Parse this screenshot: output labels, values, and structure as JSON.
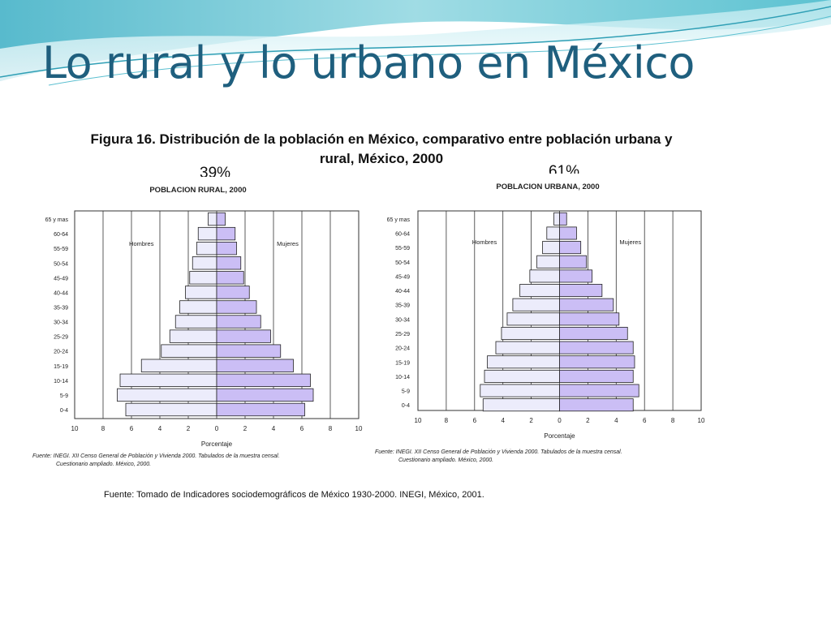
{
  "slide": {
    "title": "Lo rural y lo urbano en México",
    "figure_title": "Figura 16. Distribución de la población en México, comparativo entre población urbana y rural, México, 2000",
    "footnote": "Fuente: Tomado de Indicadores sociodemográficos de México 1930-2000. INEGI, México, 2001.",
    "colors": {
      "title": "#1f5f7e",
      "hombres_fill": "#ececfb",
      "mujeres_fill": "#cbbef5",
      "bar_stroke": "#222222"
    }
  },
  "chart_data": [
    {
      "type": "bar",
      "orientation": "population-pyramid",
      "share_label": "39%",
      "title": "POBLACION RURAL, 2000",
      "xlabel": "Porcentaje",
      "left_label": "Hombres",
      "right_label": "Mujeres",
      "xlim": [
        -10,
        10
      ],
      "x_ticks": [
        "10",
        "8",
        "6",
        "4",
        "2",
        "0",
        "2",
        "4",
        "6",
        "8",
        "10"
      ],
      "categories": [
        "0-4",
        "5-9",
        "10-14",
        "15-19",
        "20-24",
        "25-29",
        "30-34",
        "35-39",
        "40-44",
        "45-49",
        "50-54",
        "55-59",
        "60-64",
        "65 y mas"
      ],
      "series": [
        {
          "name": "Hombres",
          "values": [
            6.4,
            7.0,
            6.8,
            5.3,
            3.9,
            3.3,
            2.9,
            2.6,
            2.2,
            1.9,
            1.7,
            1.4,
            1.3,
            0.6
          ]
        },
        {
          "name": "Mujeres",
          "values": [
            6.2,
            6.8,
            6.6,
            5.4,
            4.5,
            3.8,
            3.1,
            2.8,
            2.3,
            1.9,
            1.7,
            1.4,
            1.3,
            0.6
          ]
        }
      ],
      "source": [
        "Fuente:  INEGI. XII Censo General de Población y Vivienda 2000. Tabulados de la muestra censal.",
        "Cuestionario ampliado.  México, 2000."
      ]
    },
    {
      "type": "bar",
      "orientation": "population-pyramid",
      "share_label": "61%",
      "title": "POBLACION URBANA, 2000",
      "xlabel": "Porcentaje",
      "left_label": "Hombres",
      "right_label": "Mujeres",
      "xlim": [
        -10,
        10
      ],
      "x_ticks": [
        "10",
        "8",
        "6",
        "4",
        "2",
        "0",
        "2",
        "4",
        "6",
        "8",
        "10"
      ],
      "categories": [
        "0-4",
        "5-9",
        "10-14",
        "15-19",
        "20-24",
        "25-29",
        "30-34",
        "35-39",
        "40-44",
        "45-49",
        "50-54",
        "55-59",
        "60-64",
        "65 y mas"
      ],
      "series": [
        {
          "name": "Hombres",
          "values": [
            5.4,
            5.6,
            5.3,
            5.1,
            4.5,
            4.1,
            3.7,
            3.3,
            2.8,
            2.1,
            1.6,
            1.2,
            0.9,
            0.4
          ]
        },
        {
          "name": "Mujeres",
          "values": [
            5.2,
            5.6,
            5.2,
            5.3,
            5.2,
            4.8,
            4.2,
            3.8,
            3.0,
            2.3,
            1.9,
            1.5,
            1.2,
            0.5
          ]
        }
      ],
      "source": [
        "Fuente:  INEGI. XII Censo General de Población y Vivienda 2000. Tabulados de la muestra censal.",
        "Cuestionario ampliado.  México, 2000."
      ]
    }
  ]
}
